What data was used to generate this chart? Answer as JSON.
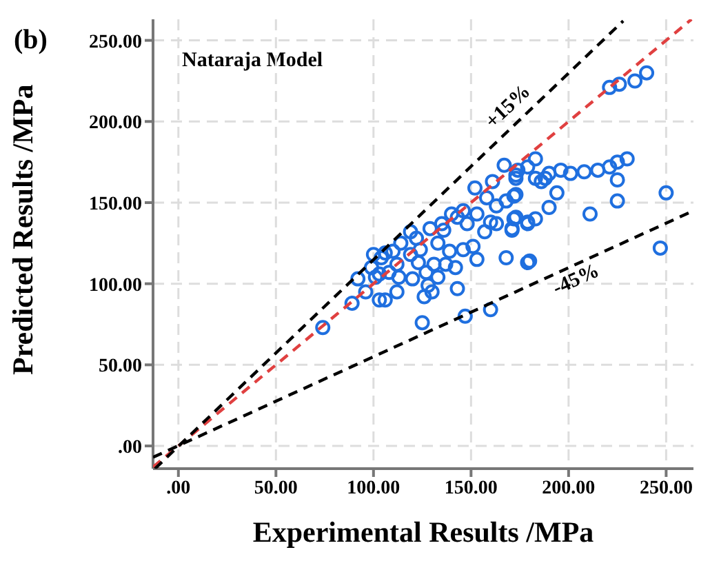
{
  "chart_data": {
    "type": "scatter",
    "title": "(b)",
    "xlabel": "Experimental Results /MPa",
    "ylabel": "Predicted Results /MPa",
    "annotations": [
      "Nataraja Model",
      {
        "text": "+15%",
        "x": 173,
        "y": 204
      },
      {
        "text": "-45%",
        "x": 201,
        "y": 110
      }
    ],
    "xlim": [
      -13,
      264
    ],
    "ylim": [
      -14,
      263
    ],
    "xticks": [
      {
        "value": 0,
        "label": ".00"
      },
      {
        "value": 50,
        "label": "50.00"
      },
      {
        "value": 100,
        "label": "100.00"
      },
      {
        "value": 150,
        "label": "150.00"
      },
      {
        "value": 200,
        "label": "200.00"
      },
      {
        "value": 250,
        "label": "250.00"
      }
    ],
    "yticks": [
      {
        "value": 0,
        "label": ".00"
      },
      {
        "value": 50,
        "label": "50.00"
      },
      {
        "value": 100,
        "label": "100.00"
      },
      {
        "value": 150,
        "label": "150.00"
      },
      {
        "value": 200,
        "label": "200.00"
      },
      {
        "value": 250,
        "label": "250.00"
      }
    ],
    "grid": true,
    "marker": "circle",
    "series": [
      {
        "color": "#1f6fdf",
        "x": [
          221,
          226,
          234,
          240,
          250,
          247,
          211,
          225,
          225,
          201,
          208,
          215,
          221,
          225,
          230,
          194,
          190,
          183,
          179,
          172,
          171,
          180,
          168,
          196,
          190,
          188,
          186,
          183,
          183,
          179,
          174,
          173,
          172,
          125,
          147,
          160,
          89,
          103,
          106,
          74,
          112,
          126,
          130,
          128,
          143,
          92,
          96,
          101,
          153,
          179,
          151,
          142,
          133,
          127,
          120,
          113,
          108,
          103,
          100,
          106,
          114,
          110,
          119,
          124,
          133,
          139,
          146,
          129,
          136,
          143,
          148,
          153,
          157,
          160,
          163,
          163,
          168,
          173,
          171,
          173,
          179,
          152,
          167,
          173,
          161,
          158,
          146,
          140,
          135,
          122,
          119,
          104,
          99,
          123,
          131,
          137,
          112
        ],
        "values": [
          221,
          223,
          225,
          230,
          156,
          122,
          143,
          151,
          164,
          168,
          169,
          170,
          172,
          175,
          177,
          156,
          147,
          140,
          138,
          140,
          133,
          114,
          116,
          170,
          168,
          165,
          163,
          165,
          177,
          172,
          170,
          165,
          154,
          76,
          80,
          84,
          88,
          90,
          90,
          73,
          95,
          92,
          95,
          99,
          97,
          103,
          95,
          104,
          115,
          113,
          123,
          110,
          104,
          107,
          103,
          104,
          107,
          106,
          118,
          119,
          125,
          120,
          118,
          121,
          125,
          120,
          121,
          134,
          133,
          141,
          137,
          143,
          132,
          138,
          137,
          148,
          151,
          155,
          134,
          141,
          137,
          159,
          173,
          167,
          163,
          153,
          145,
          143,
          137,
          128,
          132,
          116,
          110,
          113,
          112,
          112,
          112
        ]
      },
      {
        "type": "line",
        "color": "#e04040",
        "line_style": "dashed",
        "marker": "none",
        "x": [
          -13,
          263
        ],
        "values": [
          -13,
          263
        ]
      },
      {
        "type": "line",
        "color": "#000000",
        "line_style": "dashed",
        "marker": "none",
        "x": [
          -12,
          228
        ],
        "values": [
          -14,
          262
        ]
      },
      {
        "type": "line",
        "color": "#000000",
        "line_style": "dashed",
        "marker": "none",
        "x": [
          -13,
          264
        ],
        "values": [
          -7,
          145
        ]
      }
    ]
  }
}
